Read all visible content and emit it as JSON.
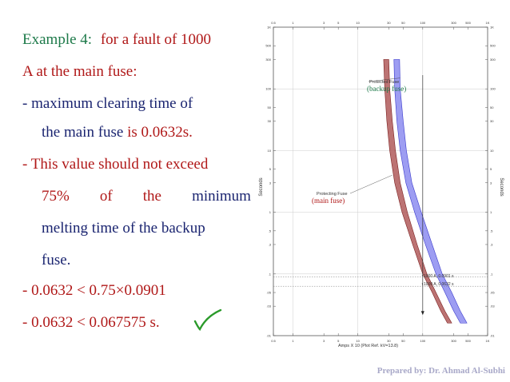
{
  "slide": {
    "title_prefix": "Example 4:",
    "title_rest": "for a fault of 1000",
    "title_line2": "A at the main fuse:",
    "bullet1_a": "- maximum clearing time of",
    "bullet1_b_prefix": "the main fuse",
    "bullet1_b_value": "is 0.0632s.",
    "bullet2_a": "- This value should not exceed",
    "bullet2_b": [
      "75%",
      "of",
      "the",
      "minimum"
    ],
    "bullet2_c": "melting time of the backup",
    "bullet2_d": "fuse.",
    "eq1": "- 0.0632 < 0.75×0.0901",
    "eq2": "- 0.0632 < 0.067575 s.",
    "check_icon": "checkmark-icon",
    "footer": "Prepared by: Dr. Ahmad Al-Subhi"
  },
  "chart_data": {
    "type": "line",
    "x_scale": "log",
    "y_scale": "log",
    "xlabel": "Amps X 10 (Plot Ref. kV=13.8)",
    "ylabel": "Seconds",
    "x_ticks": [
      "0.5",
      "1",
      "3",
      "5",
      "10",
      "30",
      "50",
      "100",
      "300",
      "500",
      "1K"
    ],
    "y_ticks": [
      "1K",
      "500",
      "300",
      "100",
      "50",
      "30",
      "10",
      "5",
      "3",
      "1",
      ".5",
      ".3",
      ".1",
      ".05",
      ".03",
      ".01"
    ],
    "xlim": [
      0.5,
      1000
    ],
    "ylim": [
      0.01,
      1000
    ],
    "series": [
      {
        "name": "Protected Fuse",
        "color": "#8c8cf0",
        "left": [
          [
            36,
            300
          ],
          [
            37,
            100
          ],
          [
            40,
            30
          ],
          [
            45,
            10
          ],
          [
            55,
            3
          ],
          [
            75,
            1
          ],
          [
            110,
            0.3
          ],
          [
            160,
            0.1
          ],
          [
            220,
            0.05
          ],
          [
            300,
            0.025
          ],
          [
            380,
            0.016
          ]
        ],
        "right": [
          [
            44,
            300
          ],
          [
            45,
            100
          ],
          [
            50,
            30
          ],
          [
            56,
            10
          ],
          [
            68,
            3
          ],
          [
            95,
            1
          ],
          [
            140,
            0.3
          ],
          [
            200,
            0.1
          ],
          [
            280,
            0.05
          ],
          [
            380,
            0.025
          ],
          [
            480,
            0.016
          ]
        ]
      },
      {
        "name": "Protecting Fuse",
        "color": "#b05a5a",
        "left": [
          [
            25,
            300
          ],
          [
            26,
            100
          ],
          [
            28,
            30
          ],
          [
            31,
            10
          ],
          [
            37,
            3
          ],
          [
            48,
            1
          ],
          [
            70,
            0.3
          ],
          [
            100,
            0.1
          ],
          [
            140,
            0.05
          ],
          [
            190,
            0.025
          ],
          [
            240,
            0.016
          ]
        ],
        "right": [
          [
            30,
            300
          ],
          [
            31,
            100
          ],
          [
            34,
            30
          ],
          [
            38,
            10
          ],
          [
            45,
            3
          ],
          [
            58,
            1
          ],
          [
            82,
            0.3
          ],
          [
            116,
            0.1
          ],
          [
            160,
            0.05
          ],
          [
            220,
            0.025
          ],
          [
            280,
            0.016
          ]
        ]
      }
    ],
    "annotations": [
      {
        "text": "Protected Fuse",
        "sub": "(backup fuse)"
      },
      {
        "text": "Protecting Fuse",
        "sub": "(main fuse)"
      },
      {
        "text": "1000 A, 0.0901 s"
      },
      {
        "text": "1000 A, 0.0632 s"
      }
    ],
    "marker_x": 100,
    "marker_y": [
      0.0901,
      0.0632
    ]
  }
}
